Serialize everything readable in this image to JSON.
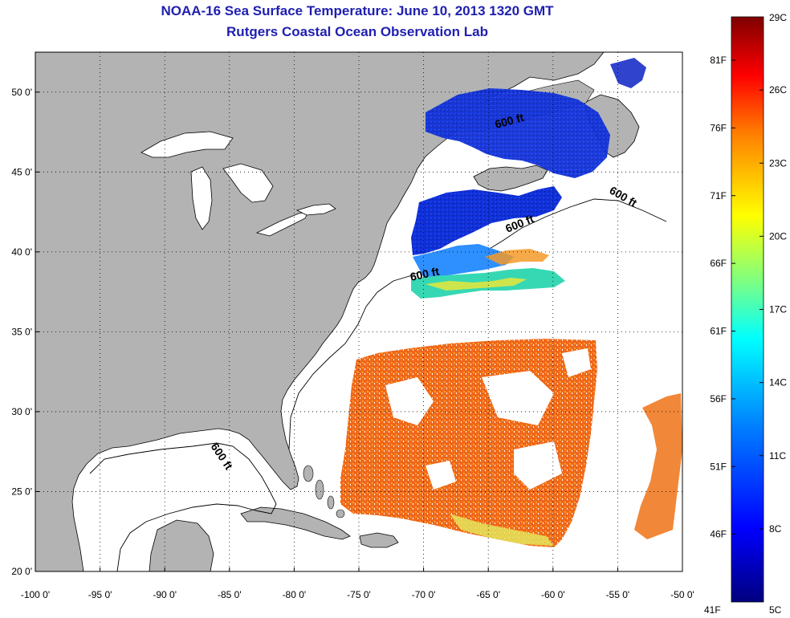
{
  "title": "NOAA-16 Sea Surface Temperature:  June 10, 2013 1320 GMT",
  "subtitle": "Rutgers Coastal Ocean Observation Lab",
  "map": {
    "lon_range": [
      -100,
      -50
    ],
    "lat_range": [
      20,
      52.5
    ],
    "land_color": "#b3b3b3",
    "water_color": "#ffffff",
    "lon_ticks": [
      {
        "value": -100,
        "label": "-100 0'"
      },
      {
        "value": -95,
        "label": "-95 0'"
      },
      {
        "value": -90,
        "label": "-90 0'"
      },
      {
        "value": -85,
        "label": "-85 0'"
      },
      {
        "value": -80,
        "label": "-80 0'"
      },
      {
        "value": -75,
        "label": "-75 0'"
      },
      {
        "value": -70,
        "label": "-70 0'"
      },
      {
        "value": -65,
        "label": "-65 0'"
      },
      {
        "value": -60,
        "label": "-60 0'"
      },
      {
        "value": -55,
        "label": "-55 0'"
      },
      {
        "value": -50,
        "label": "-50 0'"
      }
    ],
    "lat_ticks": [
      {
        "value": 20,
        "label": "20 0'"
      },
      {
        "value": 25,
        "label": "25 0'"
      },
      {
        "value": 30,
        "label": "30 0'"
      },
      {
        "value": 35,
        "label": "35 0'"
      },
      {
        "value": 40,
        "label": "40 0'"
      },
      {
        "value": 45,
        "label": "45 0'"
      },
      {
        "value": 50,
        "label": "50 0'"
      }
    ],
    "isobath_labels": [
      "600 ft",
      "600 ft",
      "600 ft",
      "600 ft",
      "600 ft"
    ]
  },
  "colorbar": {
    "top_celsius": "29C",
    "bottom_celsius": "5C",
    "bottom_fahrenheit": "41F",
    "fahrenheit_ticks": [
      "81F",
      "76F",
      "71F",
      "66F",
      "61F",
      "56F",
      "51F",
      "46F"
    ],
    "celsius_ticks": [
      "26C",
      "23C",
      "20C",
      "17C",
      "14C",
      "11C",
      "8C"
    ],
    "colors": [
      "#00007f",
      "#0000ff",
      "#007fff",
      "#00ffff",
      "#7fff7f",
      "#ffff00",
      "#ff7f00",
      "#ff0000",
      "#7f0000"
    ]
  }
}
